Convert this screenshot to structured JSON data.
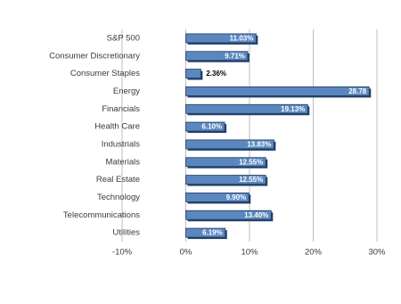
{
  "chart_data": {
    "type": "bar",
    "orientation": "horizontal",
    "categories": [
      "S&P 500",
      "Consumer Discretionary",
      "Consumer Staples",
      "Energy",
      "Financials",
      "Health Care",
      "Industrials",
      "Materials",
      "Real Estate",
      "Technology",
      "Telecommunications",
      "Utilities"
    ],
    "values": [
      11.03,
      9.71,
      2.36,
      28.78,
      19.13,
      6.1,
      13.83,
      12.55,
      12.55,
      9.9,
      13.4,
      6.19
    ],
    "value_labels": [
      "11.03%",
      "9.71%",
      "2.36%",
      "28.78",
      "19.13%",
      "6.10%",
      "13.83%",
      "12.55%",
      "12.55%",
      "9.90%",
      "13.40%",
      "6.19%"
    ],
    "color": "#5b87bf",
    "xlim": [
      -10,
      30
    ],
    "xticks": [
      {
        "value": -10,
        "label": "-10%"
      },
      {
        "value": 0,
        "label": "0%"
      },
      {
        "value": 10,
        "label": "10%"
      },
      {
        "value": 20,
        "label": "20%"
      },
      {
        "value": 30,
        "label": "30%"
      }
    ],
    "grid": true
  }
}
